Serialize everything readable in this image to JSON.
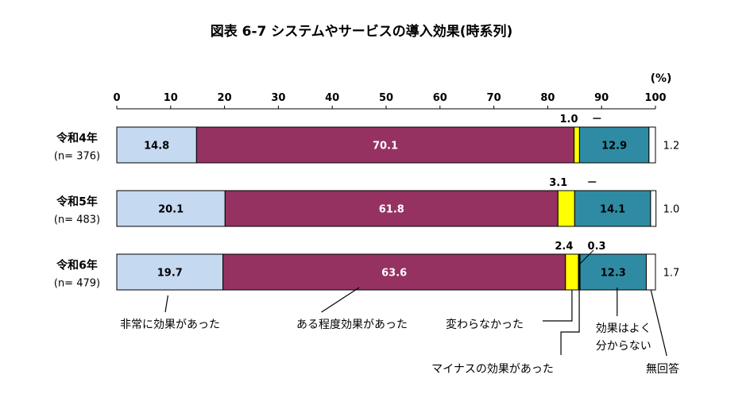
{
  "chart_data": {
    "type": "bar",
    "stacked": true,
    "orientation": "horizontal",
    "title": "図表 6-7 システムやサービスの導入効果(時系列)",
    "unit_label": "(%)",
    "xlim": [
      0,
      100
    ],
    "xticks": [
      "0",
      "10",
      "20",
      "30",
      "40",
      "50",
      "60",
      "70",
      "80",
      "90",
      "100"
    ],
    "categories": [
      {
        "label": "令和4年",
        "sub": "(n= 376)"
      },
      {
        "label": "令和5年",
        "sub": "(n= 483)"
      },
      {
        "label": "令和6年",
        "sub": "(n= 479)"
      }
    ],
    "series": [
      {
        "name": "非常に効果があった",
        "color": "#c5d9f1",
        "label_color": "#000000",
        "values": [
          14.8,
          20.1,
          19.7
        ],
        "labels": [
          "14.8",
          "20.1",
          "19.7"
        ]
      },
      {
        "name": "ある程度効果があった",
        "color": "#953262",
        "label_color": "#ffffff",
        "values": [
          70.1,
          61.8,
          63.6
        ],
        "labels": [
          "70.1",
          "61.8",
          "63.6"
        ]
      },
      {
        "name": "変わらなかった",
        "color": "#ffff00",
        "label_color": "#000000",
        "values": [
          1.0,
          3.1,
          2.4
        ],
        "labels": [
          "1.0",
          "3.1",
          "2.4"
        ]
      },
      {
        "name": "マイナスの効果があった",
        "color": "#000000",
        "label_color": "#000000",
        "values": [
          0,
          0,
          0.3
        ],
        "labels": [
          "－",
          "－",
          "0.3"
        ]
      },
      {
        "name": "効果はよく\n分からない",
        "color": "#2f8ba4",
        "label_color": "#000000",
        "values": [
          12.9,
          14.1,
          12.3
        ],
        "labels": [
          "12.9",
          "14.1",
          "12.3"
        ]
      },
      {
        "name": "無回答",
        "color": "#ffffff",
        "label_color": "#000000",
        "values": [
          1.2,
          1.0,
          1.7
        ],
        "labels": [
          "1.2",
          "1.0",
          "1.7"
        ]
      }
    ]
  }
}
